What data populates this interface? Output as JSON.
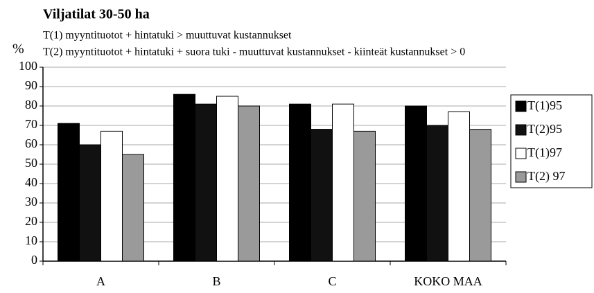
{
  "chart_data": {
    "type": "bar",
    "title": "Viljatilat 30-50 ha",
    "y_label": "%",
    "annotations": [
      "T(1) myyntituotot + hintatuki > muuttuvat kustannukset",
      "T(2) myyntituotot + hintatuki + suora tuki - muuttuvat kustannukset - kiinteät kustannukset > 0"
    ],
    "categories": [
      "A",
      "B",
      "C",
      "KOKO MAA"
    ],
    "series": [
      {
        "name": "T(1)95",
        "color": "#000000",
        "values": [
          71,
          86,
          81,
          80
        ]
      },
      {
        "name": "T(2)95",
        "color": "#111111",
        "values": [
          60,
          81,
          68,
          70
        ]
      },
      {
        "name": "T(1)97",
        "color": "#ffffff",
        "values": [
          67,
          85,
          81,
          77
        ]
      },
      {
        "name": "T(2) 97",
        "color": "#9a9a9a",
        "values": [
          55,
          80,
          67,
          68
        ]
      }
    ],
    "ylim": [
      0,
      100
    ],
    "yticks": [
      0,
      10,
      20,
      30,
      40,
      50,
      60,
      70,
      80,
      90,
      100
    ],
    "grid": true,
    "legend": "right"
  }
}
